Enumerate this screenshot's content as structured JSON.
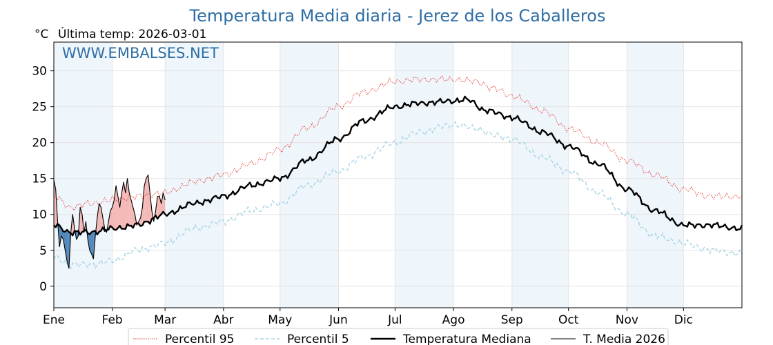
{
  "chart_data": {
    "type": "line",
    "title": "Temperatura Media diaria - Jerez de los Caballeros",
    "unit_label": "°C",
    "subtitle": "Última temp: 2026-03-01",
    "watermark": "WWW.EMBALSES.NET",
    "ylim": [
      -3,
      34
    ],
    "yticks": [
      0,
      5,
      10,
      15,
      20,
      25,
      30
    ],
    "months": [
      "Ene",
      "Feb",
      "Mar",
      "Abr",
      "May",
      "Jun",
      "Jul",
      "Ago",
      "Sep",
      "Oct",
      "Nov",
      "Dic"
    ],
    "month_starts": [
      1,
      32,
      60,
      91,
      121,
      152,
      182,
      213,
      244,
      274,
      305,
      335
    ],
    "x_range_days": [
      1,
      366
    ],
    "grid": true,
    "legend_position": "bottom-center",
    "series": [
      {
        "name": "Percentil 95",
        "style": "dotted",
        "color": "#e8302a",
        "anchors_doy": [
          1,
          10,
          20,
          32,
          45,
          60,
          75,
          91,
          105,
          121,
          135,
          152,
          165,
          182,
          195,
          213,
          225,
          235,
          244,
          260,
          274,
          290,
          305,
          320,
          335,
          350,
          366
        ],
        "anchors_val": [
          12.5,
          11.0,
          11.5,
          12.0,
          12.5,
          13.0,
          14.5,
          15.5,
          17.0,
          19.0,
          22.0,
          25.0,
          27.0,
          28.5,
          28.8,
          28.8,
          28.5,
          27.5,
          26.5,
          24.5,
          22.0,
          20.0,
          17.5,
          15.5,
          13.5,
          12.5,
          12.5
        ]
      },
      {
        "name": "Percentil 5",
        "style": "dashed",
        "color": "#a8d4e4",
        "anchors_doy": [
          1,
          10,
          20,
          32,
          45,
          60,
          75,
          91,
          105,
          121,
          135,
          152,
          165,
          182,
          195,
          213,
          225,
          235,
          244,
          260,
          274,
          290,
          305,
          320,
          335,
          350,
          366
        ],
        "anchors_val": [
          4.0,
          3.0,
          3.0,
          3.5,
          5.0,
          6.0,
          8.0,
          9.0,
          10.5,
          11.5,
          14.0,
          16.0,
          18.0,
          20.0,
          21.5,
          22.5,
          22.0,
          21.0,
          20.5,
          18.0,
          16.0,
          13.0,
          10.0,
          7.0,
          6.0,
          5.0,
          4.5
        ]
      },
      {
        "name": "Temperatura Mediana",
        "style": "solid-bold",
        "color": "#000000",
        "anchors_doy": [
          1,
          10,
          20,
          32,
          45,
          60,
          75,
          91,
          105,
          121,
          135,
          152,
          165,
          182,
          195,
          213,
          220,
          230,
          244,
          260,
          274,
          290,
          305,
          320,
          335,
          350,
          366
        ],
        "anchors_val": [
          8.5,
          7.5,
          7.5,
          8.0,
          8.5,
          10.0,
          11.5,
          12.5,
          14.0,
          15.0,
          17.5,
          20.5,
          23.0,
          25.0,
          25.5,
          25.8,
          26.0,
          24.5,
          23.5,
          21.5,
          19.5,
          17.0,
          13.5,
          10.5,
          8.5,
          8.5,
          8.0
        ]
      },
      {
        "name": "T. Media 2026",
        "style": "solid-thin",
        "color": "#000000",
        "x_start_doy": 1,
        "values": [
          14.8,
          13.5,
          9.0,
          5.5,
          7.0,
          6.5,
          5.0,
          3.5,
          2.5,
          7.5,
          10.0,
          8.0,
          6.5,
          7.0,
          11.0,
          10.0,
          7.5,
          9.0,
          6.5,
          5.0,
          4.5,
          3.8,
          7.0,
          9.5,
          11.5,
          11.0,
          9.5,
          8.0,
          7.5,
          9.0,
          10.5,
          11.0,
          12.0,
          14.0,
          12.5,
          11.0,
          13.0,
          14.5,
          13.0,
          15.0,
          13.0,
          12.0,
          11.0,
          10.0,
          8.5,
          9.0,
          9.5,
          11.0,
          14.0,
          15.0,
          15.5,
          13.0,
          10.5,
          9.0,
          10.5,
          12.5,
          12.5,
          11.5,
          13.0,
          12.0
        ]
      }
    ]
  }
}
